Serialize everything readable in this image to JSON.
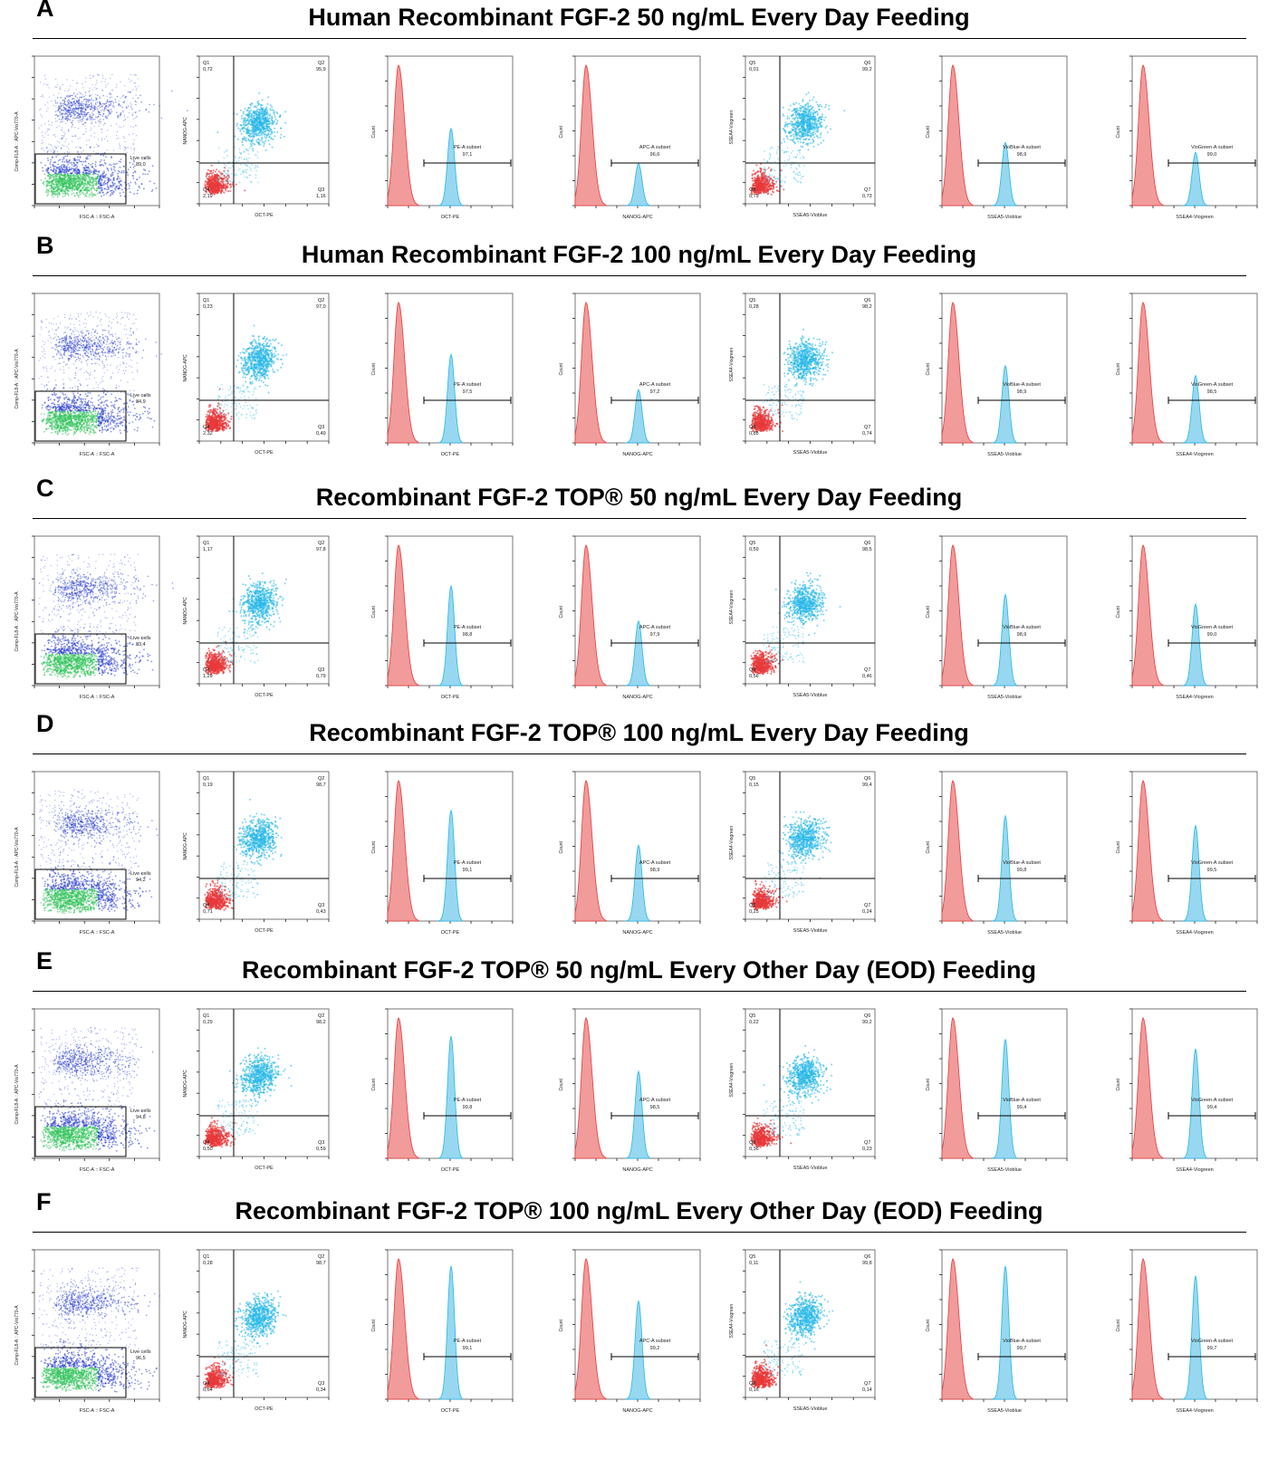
{
  "colors": {
    "negative": "#e8393a",
    "positive": "#26b7e8",
    "negative_fill": "#f19b9b",
    "positive_fill": "#97d8f0",
    "dot_plot_dense": "#2fc25a",
    "dot_plot_sparse": "#2b3fd4"
  },
  "axis_labels": {
    "fsc_y": "Comp-FL8-A :: APC-Vio770-A",
    "fsc_x": "FSC-A :: FSC-A",
    "oct_nanog_y": "NANOG-APC",
    "oct_nanog_x": "OCT-PE",
    "count": "Count",
    "oct_hist_x": "OCT-PE",
    "nanog_hist_x": "NANOG-APC",
    "ssea_y": "SSEA4-Viogreen",
    "ssea_x": "SSEA5-Vioblue",
    "ssea5_hist_x": "SSEA5-Vioblue",
    "ssea4_hist_x": "SSEA4-Viogreen"
  },
  "gate_labels": {
    "live": "Live cells",
    "pe": "PE-A subset",
    "apc": "APC-A subset",
    "vioblue": "VioBlue-A subset",
    "viogreen": "VioGreen-A subset"
  },
  "quadrant_names": {
    "oct_nanog": [
      "Q1",
      "Q2",
      "Q3",
      "Q4"
    ],
    "ssea": [
      "Q5",
      "Q6",
      "Q7",
      "Q8"
    ]
  },
  "chart_data": [
    {
      "letter": "A",
      "title": "Human Recombinant FGF-2 50 ng/mL Every Day Feeding",
      "live_cells": "89,0",
      "oct_nanog_quadrants": {
        "Q1": "0,72",
        "Q2": "95,9",
        "Q3": "1,16",
        "Q4": "2,19"
      },
      "pe_subset": "97,1",
      "apc_subset": "96,6",
      "ssea_quadrants": {
        "Q5": "0,01",
        "Q6": "99,2",
        "Q7": "0,73",
        "Q8": "0,79"
      },
      "vioblue_subset": "98,9",
      "viogreen_subset": "99,0"
    },
    {
      "letter": "B",
      "title": "Human Recombinant FGF-2 100 ng/mL Every Day Feeding",
      "live_cells": "84,9",
      "oct_nanog_quadrants": {
        "Q1": "0,23",
        "Q2": "97,0",
        "Q3": "0,49",
        "Q4": "2,32"
      },
      "pe_subset": "97,5",
      "apc_subset": "97,2",
      "ssea_quadrants": {
        "Q5": "0,28",
        "Q6": "98,2",
        "Q7": "0,74",
        "Q8": "0,85"
      },
      "vioblue_subset": "98,9",
      "viogreen_subset": "98,5"
    },
    {
      "letter": "C",
      "title": "Recombinant FGF-2 TOP® 50 ng/mL Every Day Feeding",
      "live_cells": "83,4",
      "oct_nanog_quadrants": {
        "Q1": "1,17",
        "Q2": "97,8",
        "Q3": "0,79",
        "Q4": "1,29"
      },
      "pe_subset": "98,8",
      "apc_subset": "97,9",
      "ssea_quadrants": {
        "Q5": "0,59",
        "Q6": "98,5",
        "Q7": "0,46",
        "Q8": "0,56"
      },
      "vioblue_subset": "98,9",
      "viogreen_subset": "99,0"
    },
    {
      "letter": "D",
      "title": "Recombinant FGF-2 TOP® 100 ng/mL Every Day Feeding",
      "live_cells": "94,2",
      "oct_nanog_quadrants": {
        "Q1": "0,19",
        "Q2": "98,7",
        "Q3": "0,43",
        "Q4": "0,71"
      },
      "pe_subset": "99,1",
      "apc_subset": "98,9",
      "ssea_quadrants": {
        "Q5": "0,15",
        "Q6": "99,4",
        "Q7": "0,24",
        "Q8": "0,25"
      },
      "vioblue_subset": "99,8",
      "viogreen_subset": "99,5"
    },
    {
      "letter": "E",
      "title": "Recombinant FGF-2 TOP® 50 ng/mL Every Other Day (EOD) Feeding",
      "live_cells": "94,8",
      "oct_nanog_quadrants": {
        "Q1": "0,29",
        "Q2": "98,2",
        "Q3": "0,59",
        "Q4": "0,50"
      },
      "pe_subset": "99,8",
      "apc_subset": "98,5",
      "ssea_quadrants": {
        "Q5": "0,22",
        "Q6": "99,2",
        "Q7": "0,23",
        "Q8": "0,36"
      },
      "vioblue_subset": "99,4",
      "viogreen_subset": "99,4"
    },
    {
      "letter": "F",
      "title": "Recombinant FGF-2 TOP® 100 ng/mL Every Other Day (EOD) Feeding",
      "live_cells": "96,5",
      "oct_nanog_quadrants": {
        "Q1": "0,28",
        "Q2": "98,7",
        "Q3": "0,34",
        "Q4": "0,64"
      },
      "pe_subset": "99,1",
      "apc_subset": "99,2",
      "ssea_quadrants": {
        "Q5": "0,11",
        "Q6": "99,8",
        "Q7": "0,14",
        "Q8": "0,16"
      },
      "vioblue_subset": "99,7",
      "viogreen_subset": "99,7"
    }
  ]
}
